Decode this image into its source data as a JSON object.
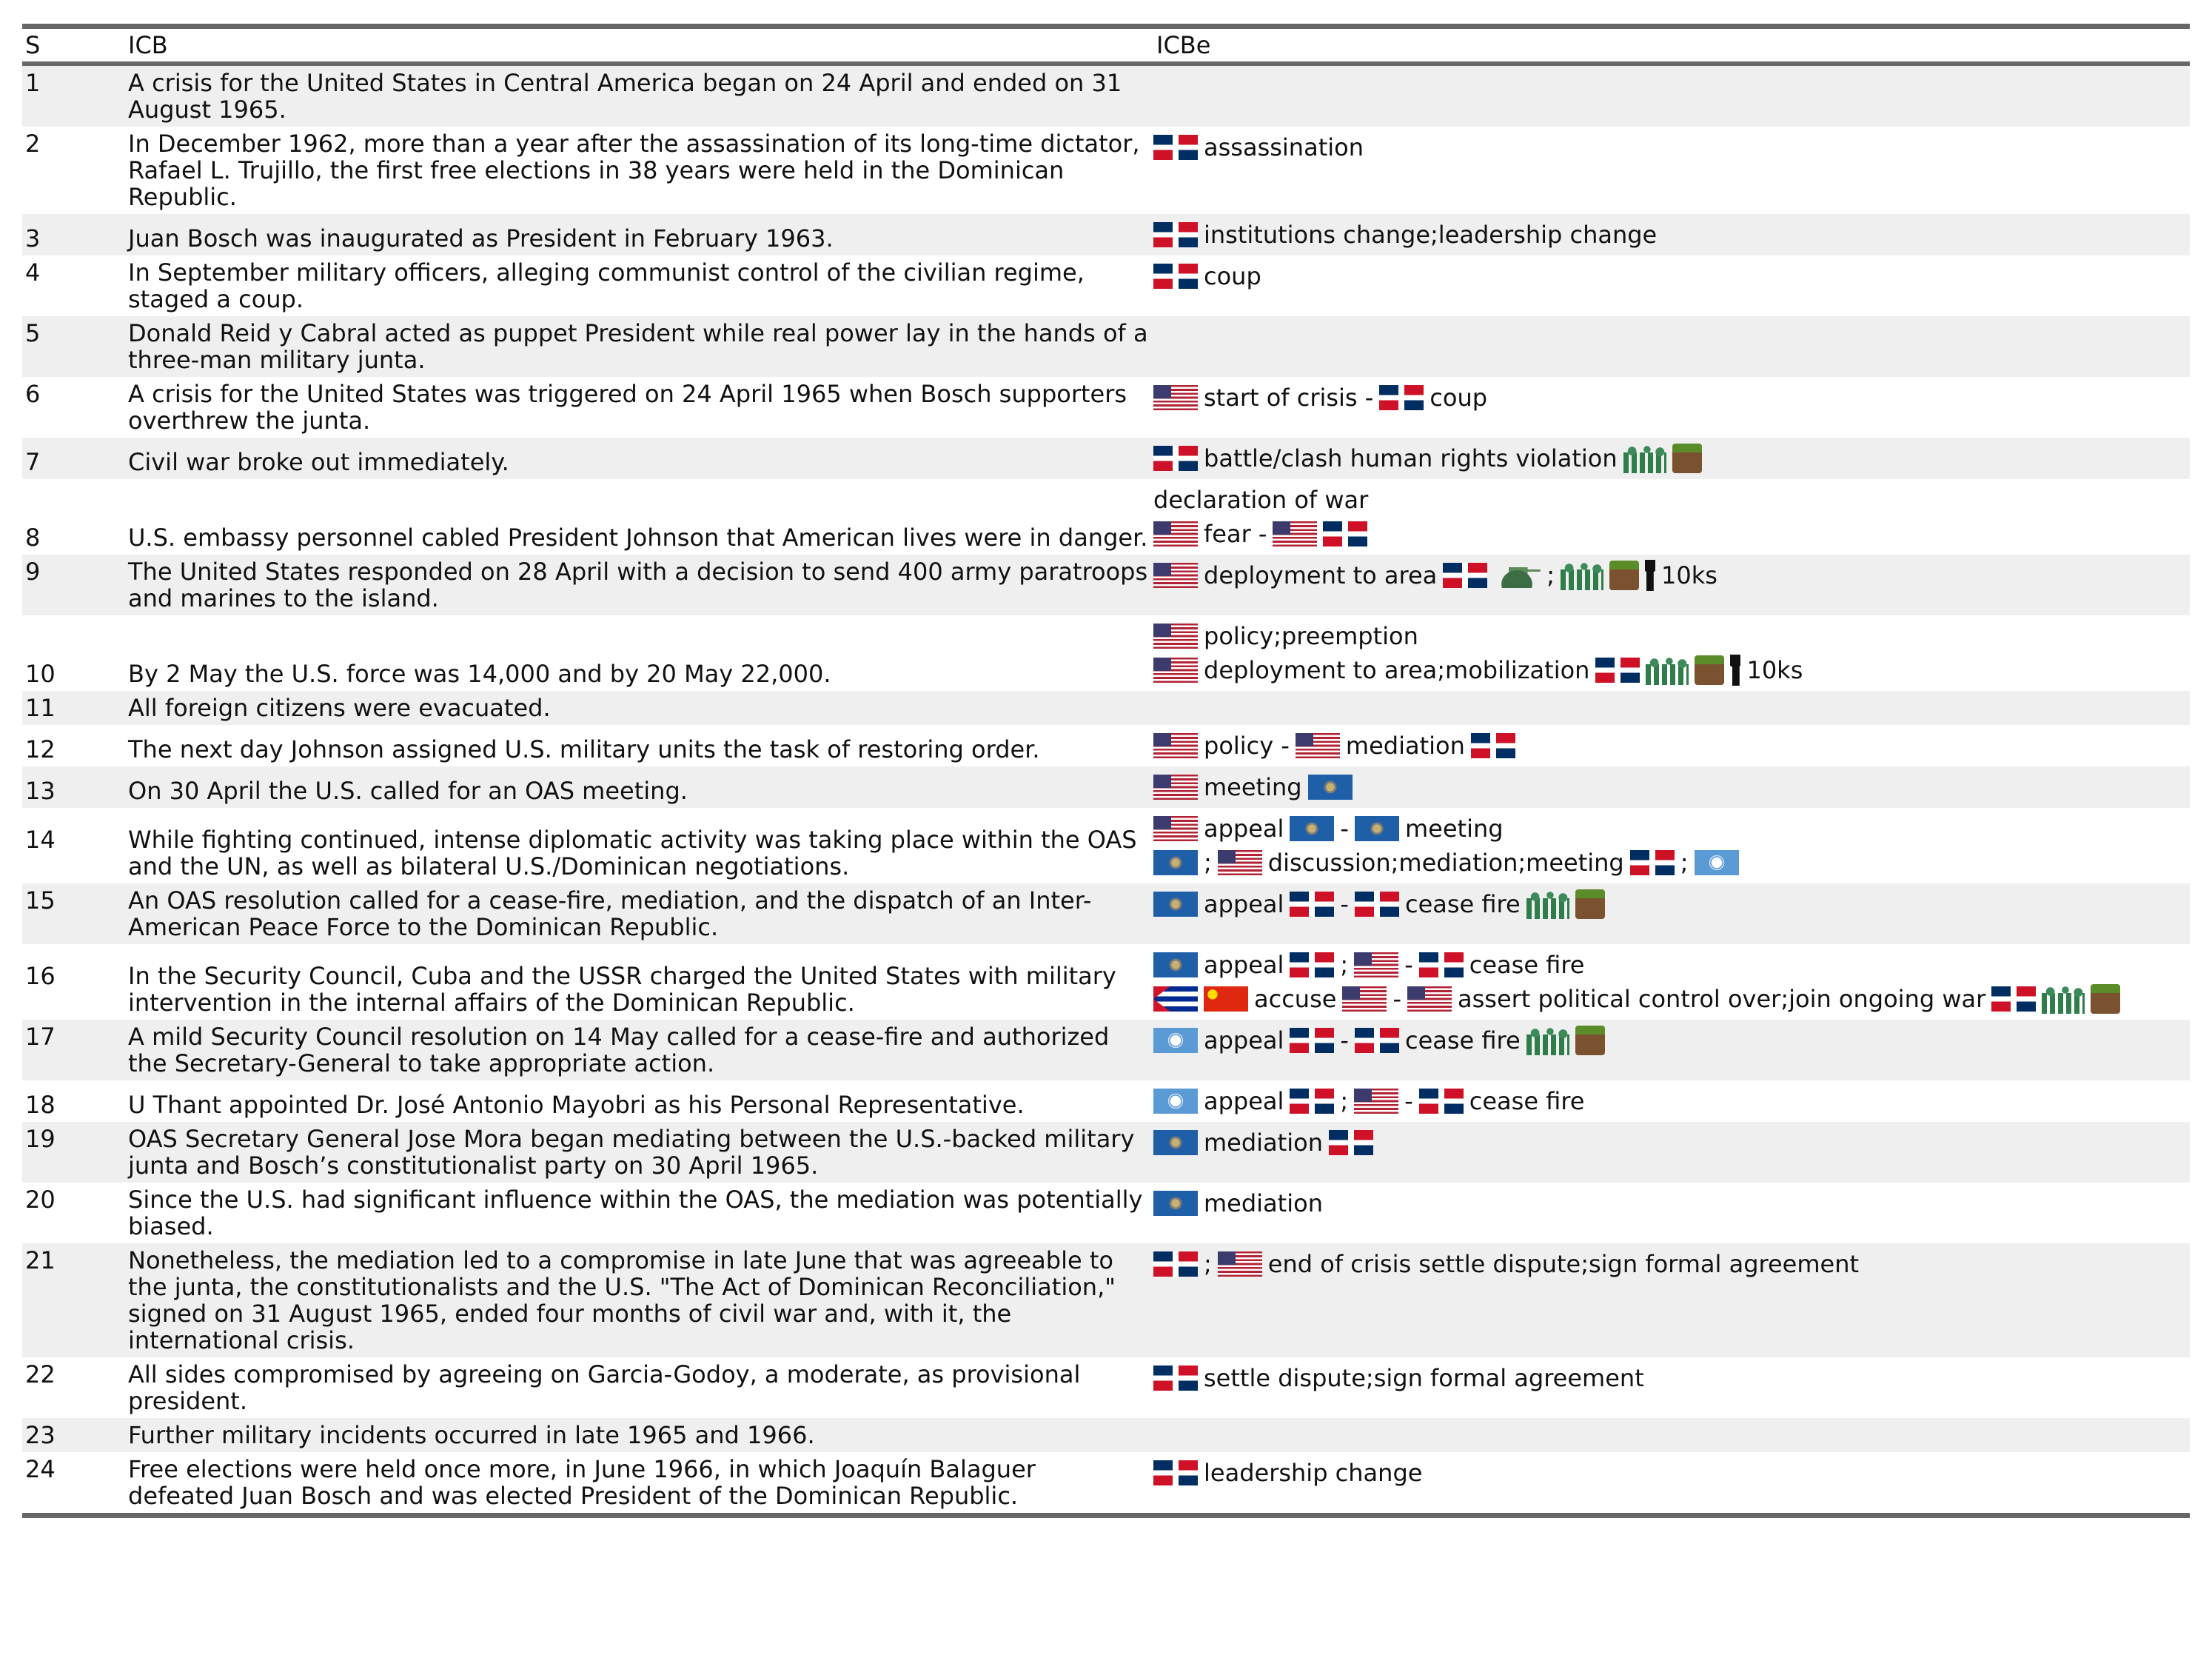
{
  "table": {
    "header": [
      "S",
      "ICB",
      "ICBe"
    ],
    "rows": [
      {
        "s": "1",
        "icb": "A crisis for the United States in Central America began on 24 April and ended on 31 August 1965.",
        "icbe": []
      },
      {
        "s": "2",
        "icb": "In December 1962, more than a year after the assassination of its long-time dictator, Rafael L. Trujillo, the first free elections in 38 years were held in the Dominican Republic.",
        "icbe": [
          [
            "assassination"
          ]
        ]
      },
      {
        "s": "3",
        "icb": "Juan Bosch was inaugurated as President in February 1963.",
        "icbe": [
          [
            "institutions change;leadership change"
          ]
        ]
      },
      {
        "s": "4",
        "icb": "In September military officers, alleging communist control of the civilian regime, staged a coup.",
        "icbe": [
          [
            "coup"
          ]
        ]
      },
      {
        "s": "5",
        "icb": "Donald Reid y Cabral acted as puppet President while real power lay in the hands of a three-man military junta.",
        "icbe": []
      },
      {
        "s": "6",
        "icb": "A crisis for the United States was triggered on 24 April 1965 when Bosch supporters overthrew the junta.",
        "icbe": [
          [
            "start of crisis -",
            "coup"
          ]
        ]
      },
      {
        "s": "7",
        "icb": "Civil war broke out immediately.",
        "icbe": [
          [
            "battle/clash human rights violation"
          ]
        ]
      },
      {
        "s": "8",
        "icb": "U.S. embassy personnel cabled President Johnson that American lives were in danger.",
        "icbe": [
          [
            "declaration of war"
          ],
          [
            "fear -"
          ]
        ]
      },
      {
        "s": "9",
        "icb": "The United States responded on 28 April with a decision to send 400 army paratroops and marines to the island.",
        "icbe": [
          [
            "deployment to area",
            ";",
            "10ks"
          ]
        ]
      },
      {
        "s": "10",
        "icb": "By 2 May the U.S. force was 14,000 and by 20 May 22,000.",
        "icbe": [
          [
            "policy;preemption"
          ],
          [
            "deployment to area;mobilization",
            "10ks"
          ]
        ]
      },
      {
        "s": "11",
        "icb": "All foreign citizens were evacuated.",
        "icbe": []
      },
      {
        "s": "12",
        "icb": "The next day Johnson assigned U.S. military units the task of restoring order.",
        "icbe": [
          [
            "policy -",
            "mediation"
          ]
        ]
      },
      {
        "s": "13",
        "icb": "On 30 April the U.S. called for an OAS meeting.",
        "icbe": [
          [
            "meeting"
          ]
        ]
      },
      {
        "s": "14",
        "icb": "While fighting continued, intense diplomatic activity was taking place within the OAS and the UN, as well as bilateral U.S./Dominican negotiations.",
        "icbe": [
          [
            "appeal",
            "-",
            "meeting"
          ],
          [
            ";",
            "discussion;mediation;meeting",
            ";"
          ]
        ]
      },
      {
        "s": "15",
        "icb": "An OAS resolution called for a cease-fire, mediation, and the dispatch of an Inter-American Peace Force to the Dominican Republic.",
        "icbe": [
          [
            "appeal",
            "-",
            "cease fire"
          ]
        ]
      },
      {
        "s": "16",
        "icb": "In the Security Council, Cuba and the USSR charged the United States with military intervention in the internal affairs of the Dominican Republic.",
        "icbe": [
          [
            "appeal",
            ";",
            "-",
            "cease fire"
          ],
          [
            "accuse",
            "-",
            "assert political control over;join ongoing war"
          ]
        ]
      },
      {
        "s": "17",
        "icb": "A mild Security Council resolution on 14 May called for a cease-fire and authorized the Secretary-General to take appropriate action.",
        "icbe": [
          [
            "appeal",
            "-",
            "cease fire"
          ]
        ]
      },
      {
        "s": "18",
        "icb": "U Thant appointed Dr. José Antonio Mayobri as his Personal Representative.",
        "icbe": [
          [
            "appeal",
            ";",
            "-",
            "cease fire"
          ]
        ]
      },
      {
        "s": "19",
        "icb": "OAS Secretary General Jose Mora began mediating between the U.S.-backed military junta and Bosch’s constitutionalist party on 30 April 1965.",
        "icbe": [
          [
            "mediation"
          ]
        ]
      },
      {
        "s": "20",
        "icb": "Since the U.S. had significant influence within the OAS, the mediation was potentially biased.",
        "icbe": [
          [
            "mediation"
          ]
        ]
      },
      {
        "s": "21",
        "icb": "Nonetheless, the mediation led to a compromise in late June that was agreeable to the junta, the constitutionalists and the U.S. \"The Act of Dominican Reconciliation,\" signed on 31 August 1965, ended four months of civil war and, with it, the international crisis.",
        "icbe": [
          [
            ";",
            "end of crisis settle dispute;sign formal agreement"
          ]
        ]
      },
      {
        "s": "22",
        "icb": "All sides compromised by agreeing on Garcia-Godoy, a moderate, as provisional president.",
        "icbe": [
          [
            "settle dispute;sign formal agreement"
          ]
        ]
      },
      {
        "s": "23",
        "icb": "Further military incidents occurred in late 1965 and 1966.",
        "icbe": []
      },
      {
        "s": "24",
        "icb": "Free elections were held once more, in June 1966, in which Joaquín Balaguer defeated Juan Bosch and was elected President of the Dominican Republic.",
        "icbe": [
          [
            "leadership change"
          ]
        ]
      }
    ]
  }
}
